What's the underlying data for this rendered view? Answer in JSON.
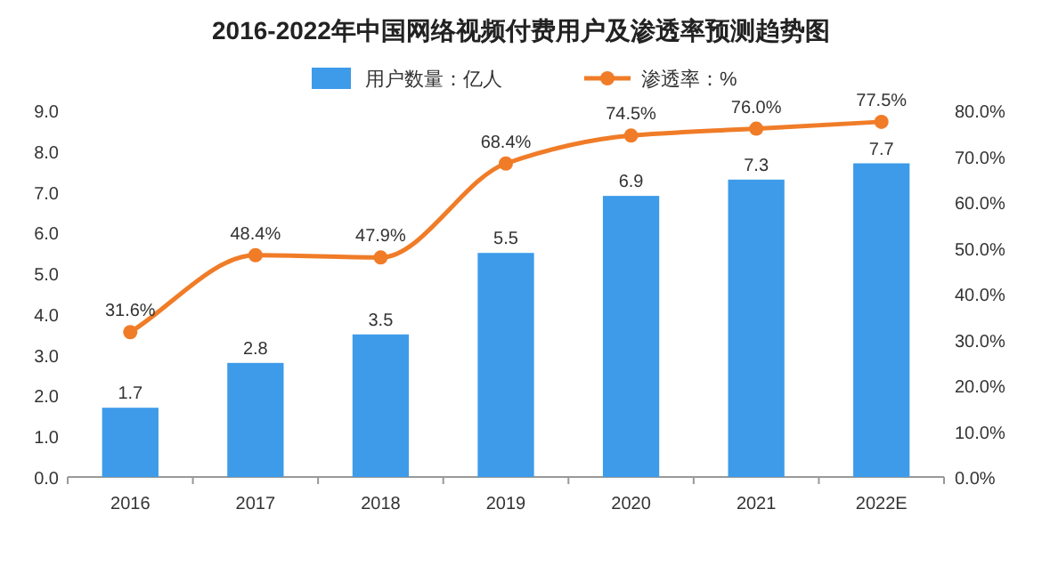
{
  "chart_data": {
    "type": "bar",
    "title": "2016-2022年中国网络视频付费用户及渗透率预测趋势图",
    "categories": [
      "2016",
      "2017",
      "2018",
      "2019",
      "2020",
      "2021",
      "2022E"
    ],
    "series": [
      {
        "name": "用户数量：亿人",
        "color": "#3d9be9",
        "values": [
          1.7,
          2.8,
          3.5,
          5.5,
          6.9,
          7.3,
          7.7
        ],
        "value_labels": [
          "1.7",
          "2.8",
          "3.5",
          "5.5",
          "6.9",
          "7.3",
          "7.7"
        ]
      },
      {
        "name": "渗透率：%",
        "type": "line",
        "axis": "y2",
        "color": "#f07c28",
        "marker": "circle",
        "values": [
          31.6,
          48.4,
          47.9,
          68.4,
          74.5,
          76.0,
          77.5
        ],
        "value_labels": [
          "31.6%",
          "48.4%",
          "47.9%",
          "68.4%",
          "74.5%",
          "76.0%",
          "77.5%"
        ]
      }
    ],
    "ylim": [
      0,
      9
    ],
    "yticks": [
      {
        "value": 0,
        "label": "0.0"
      },
      {
        "value": 1,
        "label": "1.0"
      },
      {
        "value": 2,
        "label": "2.0"
      },
      {
        "value": 3,
        "label": "3.0"
      },
      {
        "value": 4,
        "label": "4.0"
      },
      {
        "value": 5,
        "label": "5.0"
      },
      {
        "value": 6,
        "label": "6.0"
      },
      {
        "value": 7,
        "label": "7.0"
      },
      {
        "value": 8,
        "label": "8.0"
      },
      {
        "value": 9,
        "label": "9.0"
      }
    ],
    "y2lim": [
      0,
      80
    ],
    "y2ticks": [
      {
        "value": 0,
        "label": "0.0%"
      },
      {
        "value": 10,
        "label": "10.0%"
      },
      {
        "value": 20,
        "label": "20.0%"
      },
      {
        "value": 30,
        "label": "30.0%"
      },
      {
        "value": 40,
        "label": "40.0%"
      },
      {
        "value": 50,
        "label": "50.0%"
      },
      {
        "value": 60,
        "label": "60.0%"
      },
      {
        "value": 70,
        "label": "70.0%"
      },
      {
        "value": 80,
        "label": "80.0%"
      }
    ],
    "legend": "top"
  }
}
